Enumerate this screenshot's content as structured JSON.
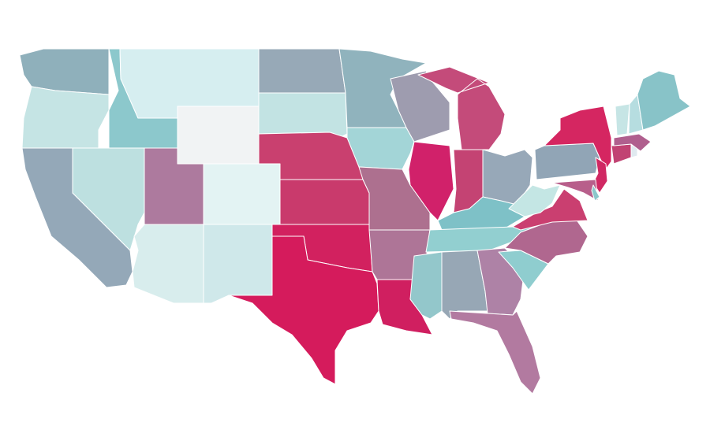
{
  "map": {
    "regions": [
      {
        "color": "#8fb0bb"
      },
      {
        "color": "#c5e4e4"
      },
      {
        "color": "#94a8b8"
      },
      {
        "color": "#bde0e0"
      },
      {
        "color": "#8cc8cc"
      },
      {
        "color": "#d6eef0"
      },
      {
        "color": "#f1f3f4"
      },
      {
        "color": "#ad7a9e"
      },
      {
        "color": "#e3f3f3"
      },
      {
        "color": "#d8eded"
      },
      {
        "color": "#cfe8ea"
      },
      {
        "color": "#97a9b7"
      },
      {
        "color": "#c2e3e3"
      },
      {
        "color": "#c9406f"
      },
      {
        "color": "#c93a6c"
      },
      {
        "color": "#d2215f"
      },
      {
        "color": "#d51b5c"
      },
      {
        "color": "#90b3bd"
      },
      {
        "color": "#a3d5d7"
      },
      {
        "color": "#ad708f"
      },
      {
        "color": "#ae7597"
      },
      {
        "color": "#d01f60"
      },
      {
        "color": "#9e9caf"
      },
      {
        "color": "#d1216a"
      },
      {
        "color": "#c44b7a"
      },
      {
        "color": "#c44373"
      },
      {
        "color": "#97a8b8"
      },
      {
        "color": "#7ec1c7"
      },
      {
        "color": "#92cfd0"
      },
      {
        "color": "#93c7cb"
      },
      {
        "color": "#97a7b5"
      },
      {
        "color": "#ae82a6"
      },
      {
        "color": "#b27aa0"
      },
      {
        "color": "#8fcdcf"
      },
      {
        "color": "#b0678f"
      },
      {
        "color": "#ca3f70"
      },
      {
        "color": "#c4e6e4"
      },
      {
        "color": "#91a5b6"
      },
      {
        "color": "#d52661"
      },
      {
        "color": "#d02863"
      },
      {
        "color": "#b85f8b"
      },
      {
        "color": "#8bc7cb"
      },
      {
        "color": "#c14373"
      },
      {
        "color": "#e0eaf0"
      },
      {
        "color": "#b05f8e"
      },
      {
        "color": "#c6e5e5"
      },
      {
        "color": "#b6dde0"
      },
      {
        "color": "#88c3c8"
      }
    ]
  }
}
